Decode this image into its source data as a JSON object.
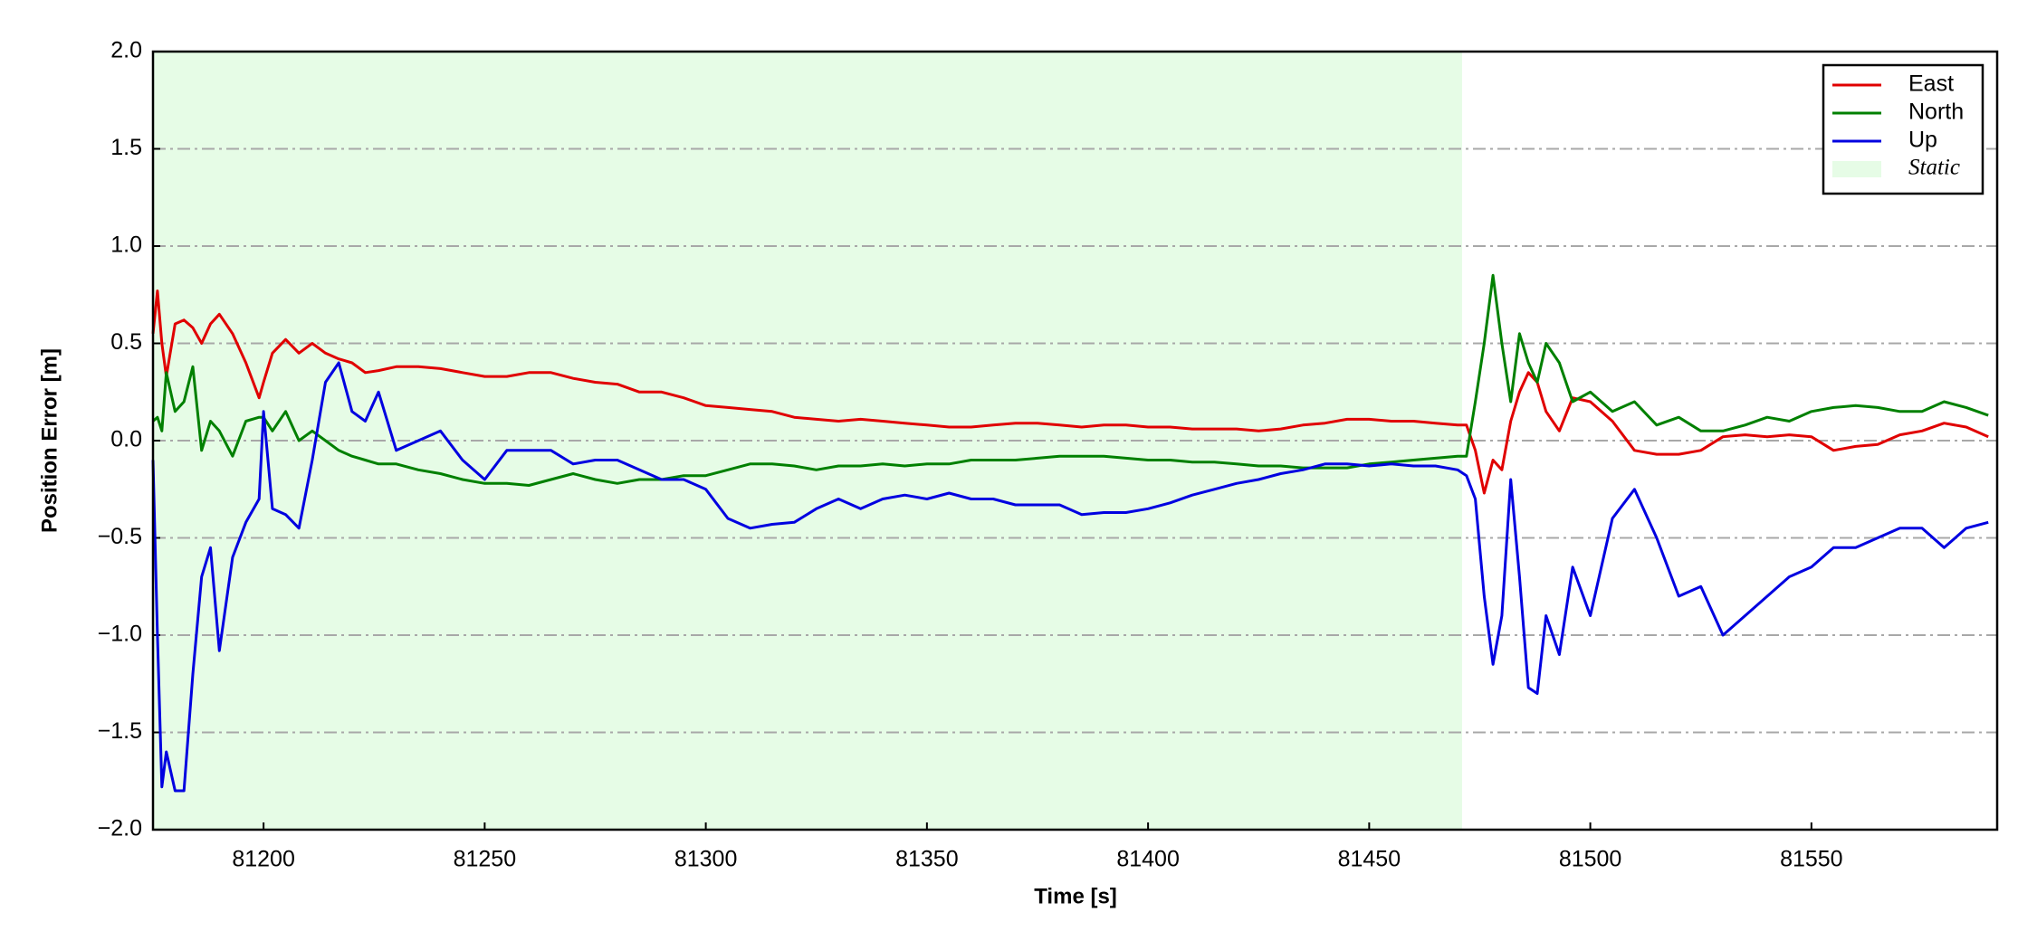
{
  "chart_data": {
    "type": "line",
    "xlabel": "Time [s]",
    "ylabel": "Position Error [m]",
    "xlim": [
      81175,
      81592
    ],
    "ylim": [
      -2,
      2
    ],
    "xticks": [
      81200,
      81250,
      81300,
      81350,
      81400,
      81450,
      81500,
      81550
    ],
    "yticks": [
      {
        "value": -2,
        "label": "−2.0"
      },
      {
        "value": -1.5,
        "label": "−1.5"
      },
      {
        "value": -1,
        "label": "−1.0"
      },
      {
        "value": -0.5,
        "label": "−0.5"
      },
      {
        "value": 0,
        "label": "0.0"
      },
      {
        "value": 0.5,
        "label": "0.5"
      },
      {
        "value": 1,
        "label": "1.0"
      },
      {
        "value": 1.5,
        "label": "1.5"
      },
      {
        "value": 2,
        "label": "2.0"
      }
    ],
    "grid": "y",
    "legend": "upper right",
    "span": {
      "name": "Static",
      "color": "#e6fce6",
      "x": [
        81175,
        81471
      ]
    },
    "x": [
      81175,
      81176,
      81177,
      81178,
      81180,
      81182,
      81184,
      81186,
      81188,
      81190,
      81193,
      81196,
      81199,
      81200,
      81202,
      81205,
      81208,
      81211,
      81214,
      81217,
      81220,
      81223,
      81226,
      81230,
      81235,
      81240,
      81245,
      81250,
      81255,
      81260,
      81265,
      81270,
      81275,
      81280,
      81285,
      81290,
      81295,
      81300,
      81305,
      81310,
      81315,
      81320,
      81325,
      81330,
      81335,
      81340,
      81345,
      81350,
      81355,
      81360,
      81365,
      81370,
      81375,
      81380,
      81385,
      81390,
      81395,
      81400,
      81405,
      81410,
      81415,
      81420,
      81425,
      81430,
      81435,
      81440,
      81445,
      81450,
      81455,
      81460,
      81465,
      81470,
      81472,
      81474,
      81476,
      81478,
      81480,
      81482,
      81484,
      81486,
      81488,
      81490,
      81493,
      81496,
      81500,
      81505,
      81510,
      81515,
      81520,
      81525,
      81530,
      81535,
      81540,
      81545,
      81550,
      81555,
      81560,
      81565,
      81570,
      81575,
      81580,
      81585,
      81590
    ],
    "series": [
      {
        "name": "East",
        "color": "#e00000",
        "values": [
          0.55,
          0.77,
          0.5,
          0.33,
          0.6,
          0.62,
          0.58,
          0.5,
          0.6,
          0.65,
          0.55,
          0.4,
          0.22,
          0.3,
          0.45,
          0.52,
          0.45,
          0.5,
          0.45,
          0.42,
          0.4,
          0.35,
          0.36,
          0.38,
          0.38,
          0.37,
          0.35,
          0.33,
          0.33,
          0.35,
          0.35,
          0.32,
          0.3,
          0.29,
          0.25,
          0.25,
          0.22,
          0.18,
          0.17,
          0.16,
          0.15,
          0.12,
          0.11,
          0.1,
          0.11,
          0.1,
          0.09,
          0.08,
          0.07,
          0.07,
          0.08,
          0.09,
          0.09,
          0.08,
          0.07,
          0.08,
          0.08,
          0.07,
          0.07,
          0.06,
          0.06,
          0.06,
          0.05,
          0.06,
          0.08,
          0.09,
          0.11,
          0.11,
          0.1,
          0.1,
          0.09,
          0.08,
          0.08,
          -0.05,
          -0.27,
          -0.1,
          -0.15,
          0.1,
          0.25,
          0.35,
          0.3,
          0.15,
          0.05,
          0.22,
          0.2,
          0.1,
          -0.05,
          -0.07,
          -0.07,
          -0.05,
          0.02,
          0.03,
          0.02,
          0.03,
          0.02,
          -0.05,
          -0.03,
          -0.02,
          0.03,
          0.05,
          0.09,
          0.07,
          0.02
        ]
      },
      {
        "name": "North",
        "color": "#008000",
        "values": [
          0.1,
          0.12,
          0.05,
          0.35,
          0.15,
          0.2,
          0.38,
          -0.05,
          0.1,
          0.05,
          -0.08,
          0.1,
          0.12,
          0.12,
          0.05,
          0.15,
          0.0,
          0.05,
          0.0,
          -0.05,
          -0.08,
          -0.1,
          -0.12,
          -0.12,
          -0.15,
          -0.17,
          -0.2,
          -0.22,
          -0.22,
          -0.23,
          -0.2,
          -0.17,
          -0.2,
          -0.22,
          -0.2,
          -0.2,
          -0.18,
          -0.18,
          -0.15,
          -0.12,
          -0.12,
          -0.13,
          -0.15,
          -0.13,
          -0.13,
          -0.12,
          -0.13,
          -0.12,
          -0.12,
          -0.1,
          -0.1,
          -0.1,
          -0.09,
          -0.08,
          -0.08,
          -0.08,
          -0.09,
          -0.1,
          -0.1,
          -0.11,
          -0.11,
          -0.12,
          -0.13,
          -0.13,
          -0.14,
          -0.14,
          -0.14,
          -0.12,
          -0.11,
          -0.1,
          -0.09,
          -0.08,
          -0.08,
          0.2,
          0.5,
          0.85,
          0.5,
          0.2,
          0.55,
          0.4,
          0.3,
          0.5,
          0.4,
          0.2,
          0.25,
          0.15,
          0.2,
          0.08,
          0.12,
          0.05,
          0.05,
          0.08,
          0.12,
          0.1,
          0.15,
          0.17,
          0.18,
          0.17,
          0.15,
          0.15,
          0.2,
          0.17,
          0.13
        ]
      },
      {
        "name": "Up",
        "color": "#0000e0",
        "values": [
          -0.1,
          -1.0,
          -1.78,
          -1.6,
          -1.8,
          -1.8,
          -1.2,
          -0.7,
          -0.55,
          -1.08,
          -0.6,
          -0.42,
          -0.3,
          0.15,
          -0.35,
          -0.38,
          -0.45,
          -0.1,
          0.3,
          0.4,
          0.15,
          0.1,
          0.25,
          -0.05,
          0.0,
          0.05,
          -0.1,
          -0.2,
          -0.05,
          -0.05,
          -0.05,
          -0.12,
          -0.1,
          -0.1,
          -0.15,
          -0.2,
          -0.2,
          -0.25,
          -0.4,
          -0.45,
          -0.43,
          -0.42,
          -0.35,
          -0.3,
          -0.35,
          -0.3,
          -0.28,
          -0.3,
          -0.27,
          -0.3,
          -0.3,
          -0.33,
          -0.33,
          -0.33,
          -0.38,
          -0.37,
          -0.37,
          -0.35,
          -0.32,
          -0.28,
          -0.25,
          -0.22,
          -0.2,
          -0.17,
          -0.15,
          -0.12,
          -0.12,
          -0.13,
          -0.12,
          -0.13,
          -0.13,
          -0.15,
          -0.18,
          -0.3,
          -0.8,
          -1.15,
          -0.9,
          -0.2,
          -0.7,
          -1.27,
          -1.3,
          -0.9,
          -1.1,
          -0.65,
          -0.9,
          -0.4,
          -0.25,
          -0.5,
          -0.8,
          -0.75,
          -1.0,
          -0.9,
          -0.8,
          -0.7,
          -0.65,
          -0.55,
          -0.55,
          -0.5,
          -0.45,
          -0.45,
          -0.55,
          -0.45,
          -0.42
        ]
      }
    ]
  }
}
